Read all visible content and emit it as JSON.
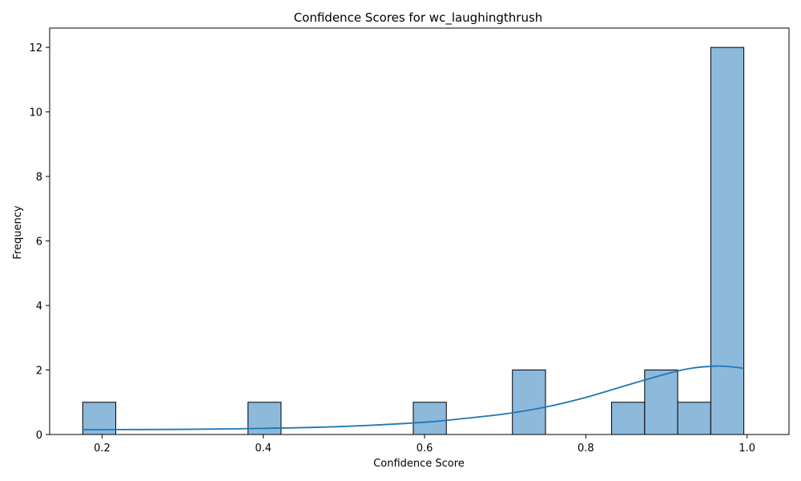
{
  "chart_data": {
    "type": "bar",
    "title": "Confidence Scores for wc_laughingthrush",
    "xlabel": "Confidence Score",
    "ylabel": "Frequency",
    "xlim": [
      0.135,
      1.052
    ],
    "ylim": [
      0,
      12.6
    ],
    "x_ticks": [
      0.2,
      0.4,
      0.6,
      0.8,
      1.0
    ],
    "x_tick_labels": [
      "0.2",
      "0.4",
      "0.6",
      "0.8",
      "1.0"
    ],
    "y_ticks": [
      0,
      2,
      4,
      6,
      8,
      10,
      12
    ],
    "y_tick_labels": [
      "0",
      "2",
      "4",
      "6",
      "8",
      "10",
      "12"
    ],
    "bar_color": "#8db9db",
    "edge_color": "#000000",
    "kde_color": "#1f77b4",
    "grid": false,
    "bins": [
      {
        "x0": 0.176,
        "x1": 0.217,
        "count": 1
      },
      {
        "x0": 0.217,
        "x1": 0.258,
        "count": 0
      },
      {
        "x0": 0.258,
        "x1": 0.299,
        "count": 0
      },
      {
        "x0": 0.299,
        "x1": 0.34,
        "count": 0
      },
      {
        "x0": 0.34,
        "x1": 0.381,
        "count": 0
      },
      {
        "x0": 0.381,
        "x1": 0.422,
        "count": 1
      },
      {
        "x0": 0.422,
        "x1": 0.463,
        "count": 0
      },
      {
        "x0": 0.463,
        "x1": 0.504,
        "count": 0
      },
      {
        "x0": 0.504,
        "x1": 0.545,
        "count": 0
      },
      {
        "x0": 0.545,
        "x1": 0.586,
        "count": 0
      },
      {
        "x0": 0.586,
        "x1": 0.627,
        "count": 1
      },
      {
        "x0": 0.627,
        "x1": 0.668,
        "count": 0
      },
      {
        "x0": 0.668,
        "x1": 0.709,
        "count": 0
      },
      {
        "x0": 0.709,
        "x1": 0.75,
        "count": 2
      },
      {
        "x0": 0.75,
        "x1": 0.791,
        "count": 0
      },
      {
        "x0": 0.791,
        "x1": 0.832,
        "count": 0
      },
      {
        "x0": 0.832,
        "x1": 0.873,
        "count": 1
      },
      {
        "x0": 0.873,
        "x1": 0.914,
        "count": 2
      },
      {
        "x0": 0.914,
        "x1": 0.955,
        "count": 1
      },
      {
        "x0": 0.955,
        "x1": 0.996,
        "count": 12
      }
    ],
    "kde": {
      "x": [
        0.176,
        0.3,
        0.4,
        0.5,
        0.6,
        0.65,
        0.7,
        0.75,
        0.8,
        0.85,
        0.9,
        0.93,
        0.96,
        0.98,
        0.996
      ],
      "y": [
        0.15,
        0.16,
        0.19,
        0.25,
        0.38,
        0.5,
        0.64,
        0.85,
        1.15,
        1.52,
        1.88,
        2.05,
        2.12,
        2.1,
        2.05
      ]
    }
  }
}
